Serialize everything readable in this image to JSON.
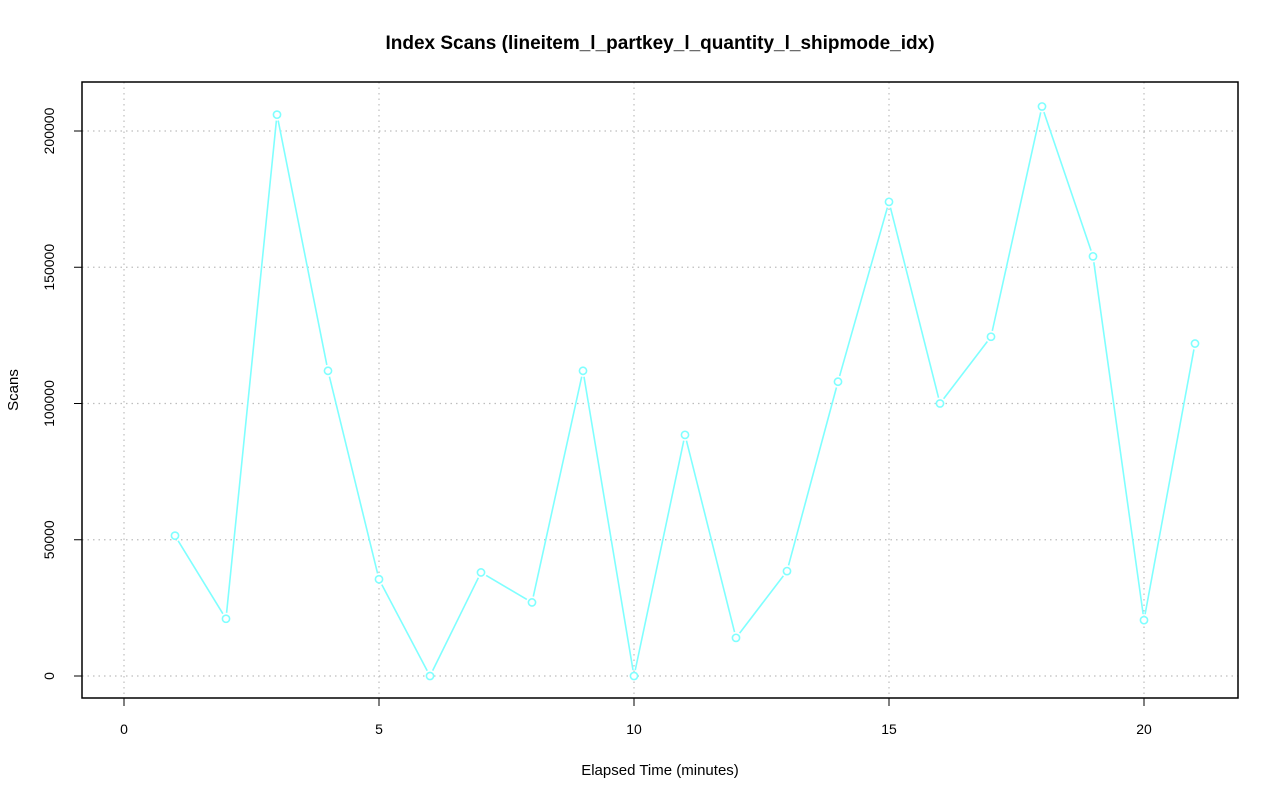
{
  "chart_data": {
    "type": "line",
    "title": "Index Scans (lineitem_l_partkey_l_quantity_l_shipmode_idx)",
    "xlabel": "Elapsed Time (minutes)",
    "ylabel": "Scans",
    "xlim": [
      0,
      21
    ],
    "ylim": [
      0,
      210000
    ],
    "x_ticks": [
      0,
      5,
      10,
      15,
      20
    ],
    "y_ticks": [
      0,
      50000,
      100000,
      150000,
      200000
    ],
    "grid": true,
    "series": [
      {
        "color": "#7fffff",
        "x": [
          1,
          2,
          3,
          4,
          5,
          6,
          7,
          8,
          9,
          10,
          11,
          12,
          13,
          14,
          15,
          16,
          17,
          18,
          19,
          20,
          21
        ],
        "values": [
          51500,
          21000,
          206000,
          112000,
          35500,
          0,
          38000,
          27000,
          112000,
          0,
          88500,
          14000,
          38500,
          108000,
          174000,
          100000,
          124500,
          209000,
          154000,
          20500,
          122000
        ]
      }
    ]
  }
}
